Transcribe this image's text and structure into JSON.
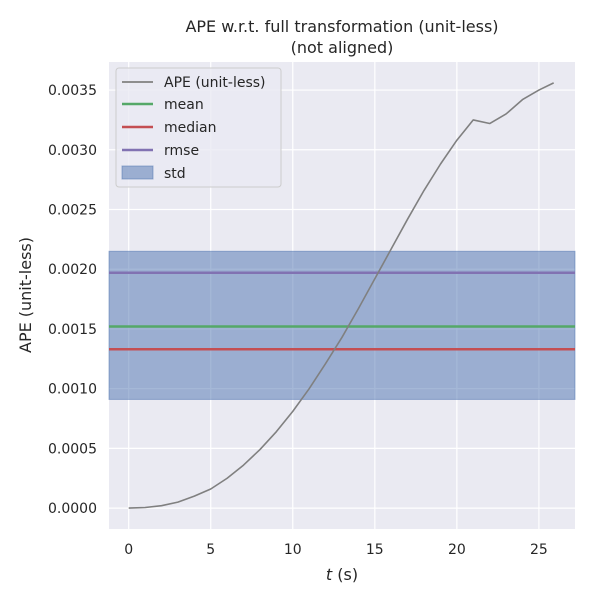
{
  "chart_data": {
    "type": "line",
    "title_lines": [
      "APE w.r.t. full transformation (unit-less)",
      "(not aligned)"
    ],
    "xlabel_italic": "t",
    "xlabel_rest": " (s)",
    "ylabel": "APE (unit-less)",
    "xlim": [
      -1.2,
      27.2
    ],
    "ylim": [
      -0.000175,
      0.003735
    ],
    "x_ticks": [
      0,
      5,
      10,
      15,
      20,
      25
    ],
    "y_ticks": [
      0.0,
      0.0005,
      0.001,
      0.0015,
      0.002,
      0.0025,
      0.003,
      0.0035
    ],
    "x_tick_labels": [
      "0",
      "5",
      "10",
      "15",
      "20",
      "25"
    ],
    "y_tick_labels": [
      "0.0000",
      "0.0005",
      "0.0010",
      "0.0015",
      "0.0020",
      "0.0025",
      "0.0030",
      "0.0035"
    ],
    "grid": true,
    "legend_position": "top-left",
    "series": [
      {
        "name": "APE (unit-less)",
        "color": "#808080",
        "x": [
          0,
          1,
          2,
          3,
          4,
          5,
          6,
          7,
          8,
          9,
          10,
          11,
          12,
          13,
          14,
          15,
          16,
          17,
          18,
          19,
          20,
          21,
          22,
          23,
          24,
          25,
          25.9
        ],
        "y": [
          0.0,
          5e-06,
          2e-05,
          5e-05,
          0.0001,
          0.00016,
          0.00025,
          0.00036,
          0.00049,
          0.00064,
          0.00081,
          0.001,
          0.00121,
          0.00143,
          0.00167,
          0.00192,
          0.00217,
          0.00242,
          0.00266,
          0.00288,
          0.00308,
          0.00325,
          0.00322,
          0.0033,
          0.00342,
          0.0035,
          0.00356
        ]
      }
    ],
    "hlines": [
      {
        "name": "mean",
        "value": 0.00152,
        "color": "#55a868"
      },
      {
        "name": "median",
        "value": 0.00133,
        "color": "#c44e52"
      },
      {
        "name": "rmse",
        "value": 0.00197,
        "color": "#8172b2"
      }
    ],
    "band": {
      "name": "std",
      "low": 0.00091,
      "high": 0.00215,
      "color": "#4c72b0",
      "opacity": 0.5
    }
  }
}
